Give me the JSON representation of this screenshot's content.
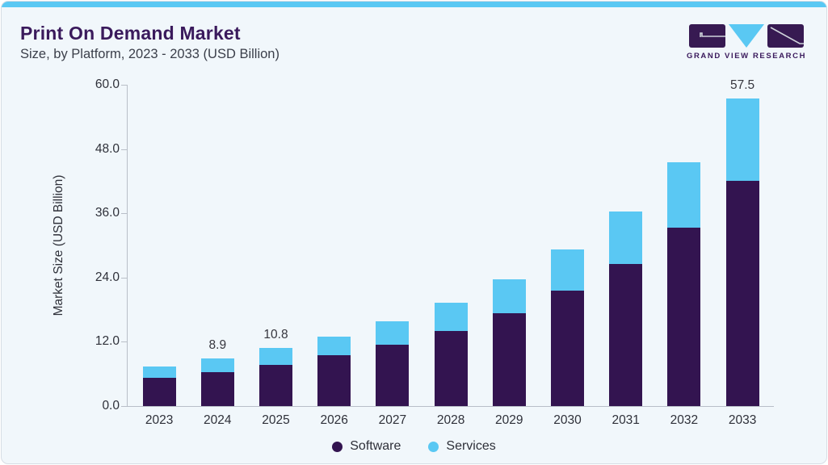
{
  "header": {
    "title": "Print On Demand Market",
    "subtitle": "Size, by Platform, 2023 - 2033 (USD Billion)",
    "logo_text": "GRAND VIEW RESEARCH"
  },
  "colors": {
    "accent_strip": "#5ac8f3",
    "software": "#331450",
    "services": "#5ac8f3",
    "title_purple": "#3a1a5c",
    "card_background": "#f1f7fb",
    "axis_line": "#b9bfc8"
  },
  "chart_data": {
    "type": "bar",
    "stacked": true,
    "title": "Print On Demand Market Size, by Platform, 2023 - 2033 (USD Billion)",
    "categories": [
      "2023",
      "2024",
      "2025",
      "2026",
      "2027",
      "2028",
      "2029",
      "2030",
      "2031",
      "2032",
      "2033"
    ],
    "series": [
      {
        "name": "Software",
        "color": "#331450",
        "values": [
          5.3,
          6.3,
          7.7,
          9.5,
          11.4,
          14.0,
          17.3,
          21.5,
          26.6,
          33.3,
          42.0
        ]
      },
      {
        "name": "Services",
        "color": "#5ac8f3",
        "values": [
          2.1,
          2.6,
          3.1,
          3.4,
          4.4,
          5.3,
          6.4,
          7.7,
          9.7,
          12.2,
          15.5
        ]
      }
    ],
    "totals": [
      7.4,
      8.9,
      10.8,
      12.9,
      15.8,
      19.3,
      23.7,
      29.2,
      36.3,
      45.5,
      57.5
    ],
    "total_labels": [
      "",
      "8.9",
      "10.8",
      "",
      "",
      "",
      "",
      "",
      "",
      "",
      "57.5"
    ],
    "xlabel": "",
    "ylabel": "Market Size (USD Billion)",
    "ylim": [
      0,
      60
    ],
    "y_ticks": [
      "0.0",
      "12.0",
      "24.0",
      "36.0",
      "48.0",
      "60.0"
    ],
    "grid": false,
    "legend_position": "bottom-center"
  }
}
